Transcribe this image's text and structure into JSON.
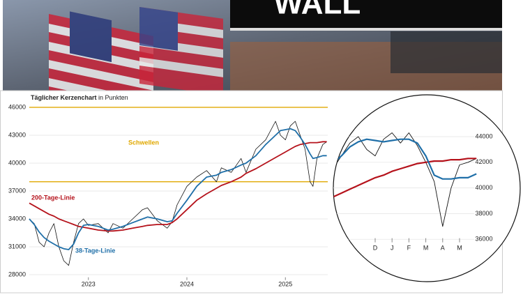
{
  "header": {
    "sign": "WALL"
  },
  "chart_data": [
    {
      "type": "line",
      "title": "Täglicher Kerzenchart",
      "subtitle": "in Punkten",
      "x": [
        2022.4,
        2022.45,
        2022.5,
        2022.55,
        2022.6,
        2022.65,
        2022.7,
        2022.75,
        2022.8,
        2022.85,
        2022.9,
        2022.95,
        2023.0,
        2023.1,
        2023.2,
        2023.25,
        2023.35,
        2023.45,
        2023.55,
        2023.6,
        2023.7,
        2023.8,
        2023.85,
        2023.9,
        2024.0,
        2024.1,
        2024.2,
        2024.3,
        2024.35,
        2024.45,
        2024.55,
        2024.6,
        2024.7,
        2024.8,
        2024.9,
        2024.95,
        2025.0,
        2025.05,
        2025.1,
        2025.15,
        2025.2,
        2025.25,
        2025.28,
        2025.32,
        2025.38,
        2025.42
      ],
      "xlim": [
        2022.4,
        2025.43
      ],
      "xticks": [
        2023,
        2024,
        2025
      ],
      "ylim": [
        27500,
        46500
      ],
      "yticks": [
        28000,
        31000,
        34000,
        37000,
        40000,
        43000,
        46000
      ],
      "grid": true,
      "thresholds": {
        "label": "Schwellen",
        "values": [
          46000,
          38000
        ],
        "color": "#e0a800"
      },
      "series": [
        {
          "color": "#111111",
          "values": [
            34000,
            33500,
            31500,
            31000,
            32500,
            33500,
            31000,
            29500,
            29000,
            31500,
            33500,
            34000,
            33300,
            33500,
            32500,
            33500,
            33000,
            34000,
            35000,
            35200,
            33800,
            33000,
            33700,
            35500,
            37500,
            38500,
            39200,
            38000,
            39500,
            39000,
            40500,
            39000,
            41500,
            42500,
            44500,
            43000,
            42500,
            44000,
            44500,
            43000,
            41500,
            38000,
            37500,
            40500,
            42000,
            42300
          ]
        },
        {
          "name": "200-Tage-Linie",
          "color": "#b5121b",
          "values": [
            35700,
            35400,
            35100,
            34800,
            34500,
            34300,
            34000,
            33800,
            33600,
            33400,
            33200,
            33100,
            33000,
            32800,
            32700,
            32700,
            32800,
            33000,
            33200,
            33300,
            33400,
            33400,
            33600,
            34000,
            35000,
            36000,
            36700,
            37300,
            37600,
            38000,
            38500,
            38900,
            39400,
            40000,
            40600,
            40900,
            41200,
            41500,
            41800,
            42000,
            42100,
            42200,
            42200,
            42200,
            42300,
            42300
          ]
        },
        {
          "name": "38-Tage-Linie",
          "color": "#1f6fa8",
          "values": [
            34000,
            33400,
            32600,
            32000,
            31600,
            31300,
            31000,
            30800,
            30700,
            31300,
            32500,
            33300,
            33400,
            33200,
            32800,
            32900,
            33200,
            33600,
            34000,
            34200,
            34000,
            33700,
            33800,
            34600,
            36000,
            37500,
            38500,
            38700,
            39000,
            39300,
            39800,
            40000,
            40800,
            42000,
            43000,
            43500,
            43600,
            43700,
            43500,
            42800,
            42000,
            41000,
            40500,
            40600,
            40800,
            40800
          ]
        }
      ]
    },
    {
      "type": "line",
      "categories": [
        null,
        null,
        null,
        null,
        null,
        "D",
        null,
        "J",
        null,
        "F",
        null,
        "M",
        null,
        "A",
        null,
        "M",
        null,
        null
      ],
      "ylim": [
        35000,
        45500
      ],
      "yticks": [
        36000,
        38000,
        40000,
        42000,
        44000
      ],
      "grid": true,
      "series": [
        {
          "color": "#111111",
          "values": [
            41500,
            42500,
            43500,
            44000,
            43000,
            42500,
            43800,
            44300,
            43500,
            44300,
            43300,
            42000,
            40500,
            37000,
            40000,
            41800,
            42000,
            42300
          ]
        },
        {
          "color": "#b5121b",
          "values": [
            39300,
            39600,
            39900,
            40200,
            40500,
            40800,
            41000,
            41300,
            41500,
            41700,
            41900,
            42000,
            42100,
            42100,
            42200,
            42200,
            42300,
            42300
          ]
        },
        {
          "color": "#1f6fa8",
          "values": [
            41900,
            42500,
            43200,
            43600,
            43800,
            43700,
            43600,
            43700,
            43800,
            43800,
            43500,
            42500,
            41000,
            40700,
            40700,
            40800,
            40800,
            41100
          ]
        }
      ]
    }
  ]
}
